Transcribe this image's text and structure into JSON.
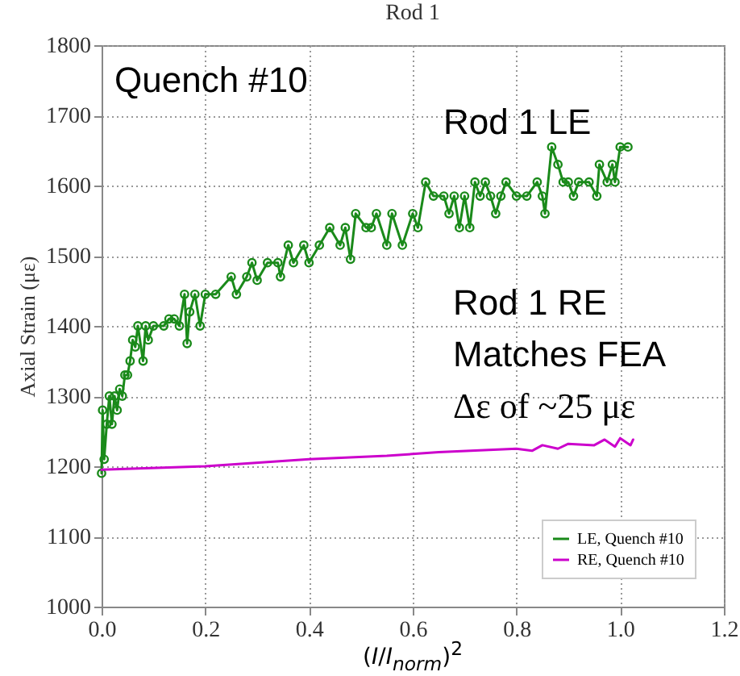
{
  "chart_data": {
    "type": "line",
    "title": "Rod 1",
    "xlabel": "(I/I$_{norm}$)$^{2}$",
    "ylabel": "Axial Strain (με)",
    "annotations": [
      "Quench #10",
      "Rod 1 LE",
      "Rod 1 RE",
      "Matches FEA",
      "Δε of ~25 με"
    ],
    "xlim": [
      0,
      1.2
    ],
    "xticks": [
      {
        "value": 0,
        "label": "0.0"
      },
      {
        "value": 0.2,
        "label": "0.2"
      },
      {
        "value": 0.4,
        "label": "0.4"
      },
      {
        "value": 0.6,
        "label": "0.6"
      },
      {
        "value": 0.8,
        "label": "0.8"
      },
      {
        "value": 1,
        "label": "1.0"
      },
      {
        "value": 1.2,
        "label": "1.2"
      }
    ],
    "ylim": [
      1000,
      1800
    ],
    "yticks": [
      1000,
      1100,
      1200,
      1300,
      1400,
      1500,
      1600,
      1700,
      1800
    ],
    "grid": true,
    "legend": "bottom right",
    "series": [
      {
        "name": "LE, Quench #10",
        "color": "#1a8a1a",
        "marker": "circle",
        "x": [
          0,
          0.002,
          0.005,
          0.01,
          0.015,
          0.02,
          0.025,
          0.03,
          0.035,
          0.04,
          0.045,
          0.05,
          0.055,
          0.06,
          0.065,
          0.07,
          0.08,
          0.085,
          0.09,
          0.1,
          0.12,
          0.13,
          0.14,
          0.15,
          0.16,
          0.165,
          0.17,
          0.18,
          0.19,
          0.2,
          0.22,
          0.25,
          0.26,
          0.28,
          0.29,
          0.3,
          0.32,
          0.34,
          0.345,
          0.36,
          0.37,
          0.39,
          0.4,
          0.42,
          0.44,
          0.46,
          0.47,
          0.48,
          0.49,
          0.51,
          0.52,
          0.53,
          0.55,
          0.56,
          0.58,
          0.6,
          0.61,
          0.625,
          0.64,
          0.66,
          0.67,
          0.68,
          0.69,
          0.7,
          0.71,
          0.72,
          0.73,
          0.74,
          0.75,
          0.76,
          0.77,
          0.78,
          0.8,
          0.82,
          0.84,
          0.85,
          0.855,
          0.868,
          0.88,
          0.89,
          0.9,
          0.91,
          0.92,
          0.94,
          0.955,
          0.96,
          0.975,
          0.985,
          0.99,
          1.0,
          1.015
        ],
        "values": [
          1190,
          1280,
          1210,
          1260,
          1300,
          1260,
          1300,
          1280,
          1310,
          1300,
          1330,
          1330,
          1350,
          1380,
          1370,
          1400,
          1350,
          1400,
          1380,
          1400,
          1400,
          1410,
          1410,
          1400,
          1445,
          1375,
          1420,
          1445,
          1400,
          1445,
          1445,
          1470,
          1445,
          1470,
          1490,
          1465,
          1490,
          1490,
          1470,
          1515,
          1490,
          1515,
          1490,
          1515,
          1540,
          1515,
          1540,
          1495,
          1560,
          1540,
          1540,
          1560,
          1515,
          1560,
          1515,
          1560,
          1540,
          1605,
          1585,
          1585,
          1560,
          1585,
          1540,
          1585,
          1540,
          1605,
          1585,
          1605,
          1585,
          1560,
          1585,
          1605,
          1585,
          1585,
          1605,
          1585,
          1560,
          1655,
          1630,
          1605,
          1605,
          1585,
          1605,
          1605,
          1585,
          1630,
          1605,
          1630,
          1605,
          1655,
          1655
        ]
      },
      {
        "name": "RE, Quench #10",
        "color": "#cc00cc",
        "marker": "none",
        "x": [
          0,
          0.2,
          0.4,
          0.55,
          0.65,
          0.8,
          0.83,
          0.85,
          0.88,
          0.9,
          0.95,
          0.97,
          0.99,
          1.0,
          1.02,
          1.025
        ],
        "values": [
          1195,
          1200,
          1210,
          1215,
          1220,
          1225,
          1222,
          1230,
          1225,
          1232,
          1230,
          1238,
          1228,
          1240,
          1230,
          1238
        ]
      }
    ]
  }
}
